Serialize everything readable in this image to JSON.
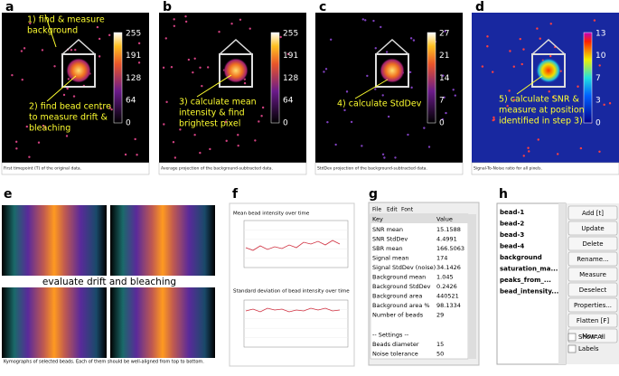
{
  "panels": {
    "a": {
      "label": "a",
      "colorbar_ticks": [
        "255",
        "191",
        "128",
        "64",
        "0"
      ],
      "annotations": [
        [
          "1) find & measure",
          "background"
        ],
        [
          "2) find bead centre",
          "to  measure drift &",
          "bleaching"
        ]
      ],
      "caption": "First timepoint (T) of the original data."
    },
    "b": {
      "label": "b",
      "colorbar_ticks": [
        "255",
        "191",
        "128",
        "64",
        "0"
      ],
      "annotations": [
        [
          "3) calculate mean",
          "intensity & find",
          "brightest pixel"
        ]
      ],
      "caption": "Average projection of the background-subtracted data."
    },
    "c": {
      "label": "c",
      "colorbar_ticks": [
        "27",
        "21",
        "14",
        "7",
        "0"
      ],
      "annotations": [
        [
          "4) calculate StdDev"
        ]
      ],
      "caption": "StdDev projection of the background-subtracted data."
    },
    "d": {
      "label": "d",
      "colorbar_ticks": [
        "13",
        "10",
        "7",
        "3",
        "0"
      ],
      "annotations": [
        [
          "5) calculate SNR &",
          "measure at position",
          "identified in step 3)"
        ]
      ],
      "caption": "Signal-To-Noise ratio for all pixels."
    },
    "e": {
      "label": "e",
      "annotation": "evaluate drift and bleaching",
      "caption": "Kymographs of selected beads. Each of them should be well-aligned from top to bottom."
    },
    "f": {
      "label": "f",
      "titles": [
        "Mean bead intensity over time",
        "Standard deviation of bead intensity over time"
      ]
    },
    "g": {
      "label": "g",
      "menu": [
        "File",
        "Edit",
        "Font"
      ],
      "header": [
        "Key",
        "Value"
      ],
      "rows": [
        [
          "SNR mean",
          "15.1588"
        ],
        [
          "SNR StdDev",
          "4.4991"
        ],
        [
          "SBR mean",
          "166.5063"
        ],
        [
          "Signal mean",
          "174"
        ],
        [
          "Signal StdDev (noise)",
          "34.1426"
        ],
        [
          "Background mean",
          "1.045"
        ],
        [
          "Background StdDev",
          "0.2426"
        ],
        [
          "Background area",
          "440521"
        ],
        [
          "Background area %",
          "98.1334"
        ],
        [
          "Number of beads",
          "29"
        ]
      ],
      "settings_heading": "-- Settings --",
      "settings_rows": [
        [
          "Beads diameter",
          "15"
        ],
        [
          "Noise tolerance",
          "50"
        ]
      ]
    },
    "h": {
      "label": "h",
      "items": [
        "bead-1",
        "bead-2",
        "bead-3",
        "bead-4",
        "background",
        "saturation_ma...",
        "peaks_from_...",
        "bead_intensity..."
      ],
      "buttons": [
        "Add [t]",
        "Update",
        "Delete",
        "Rename...",
        "Measure",
        "Deselect",
        "Properties...",
        "Flatten [F]",
        "More »"
      ],
      "checkboxes": [
        "Show All",
        "Labels"
      ]
    }
  }
}
